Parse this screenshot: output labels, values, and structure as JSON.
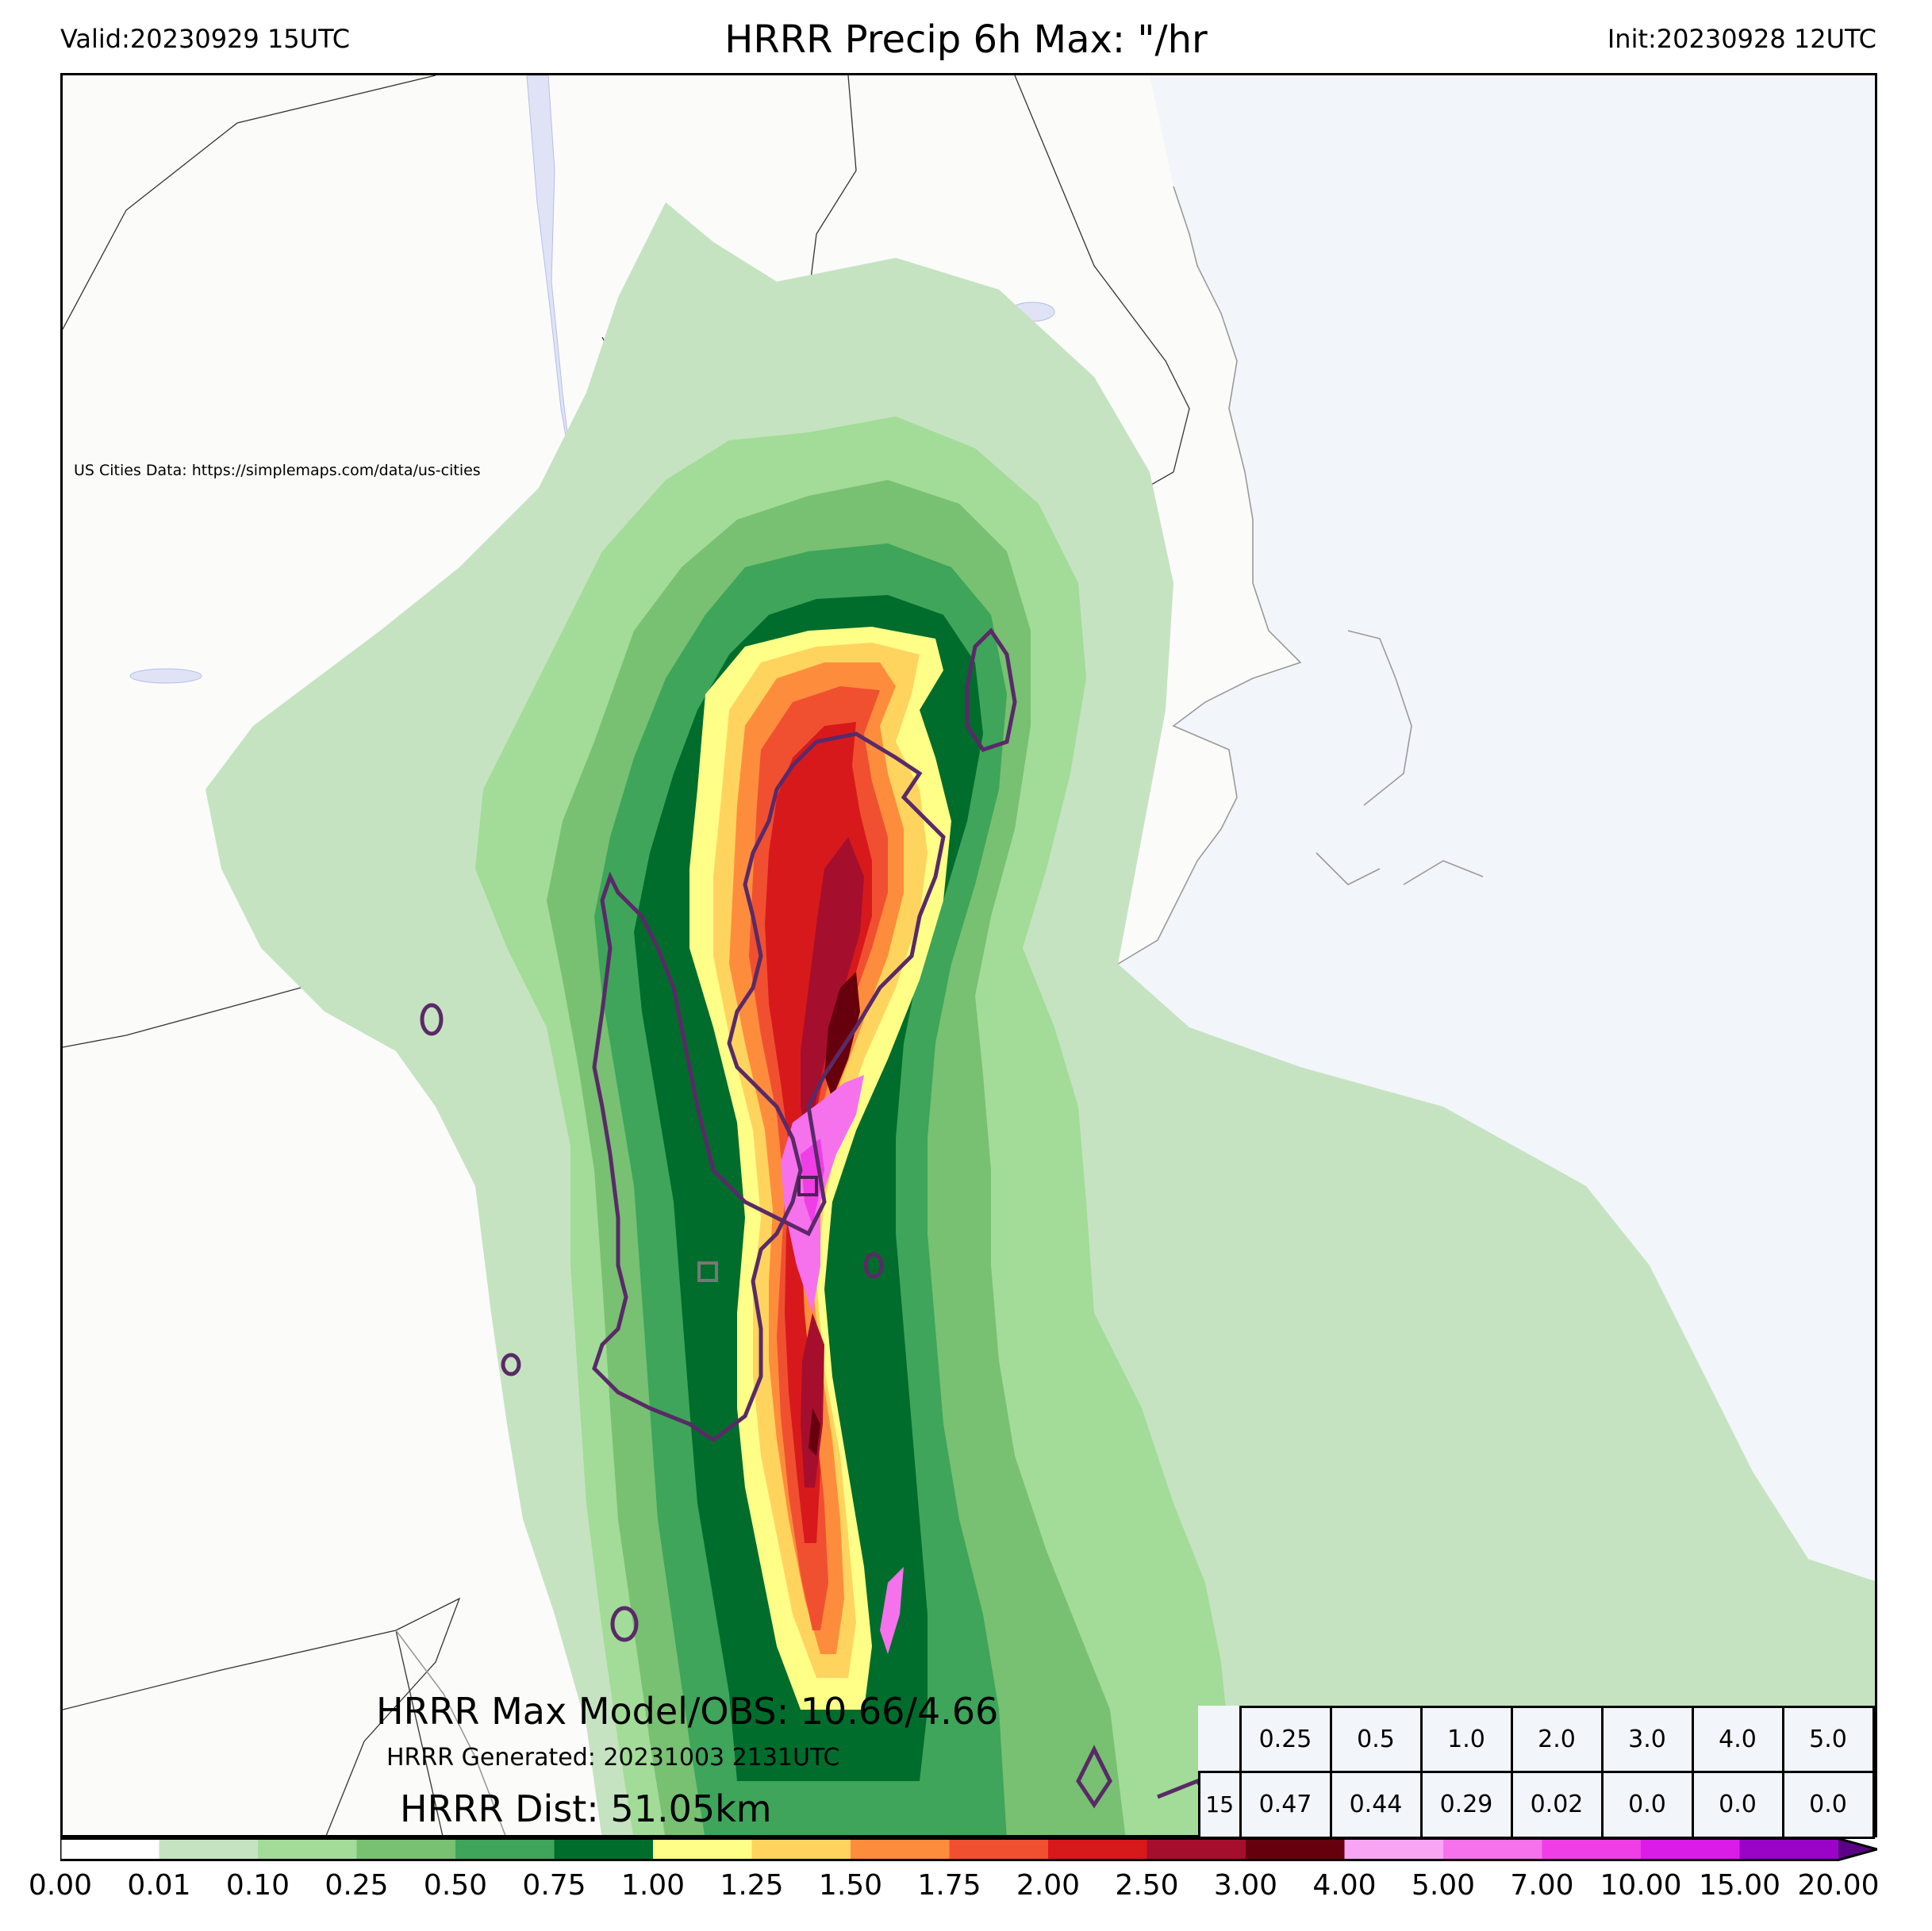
{
  "header": {
    "valid": "Valid:20230929 15UTC",
    "title": "HRRR Precip 6h Max: \"/hr",
    "init": "Init:20230928 12UTC"
  },
  "credit": "US Cities Data: https://simplemaps.com/data/us-cities",
  "stats": {
    "max_model_obs": "HRRR Max Model/OBS: 10.66/4.66",
    "generated": "HRRR Generated: 20231003 2131UTC",
    "distance": "HRRR Dist: 51.05km"
  },
  "score_table": {
    "thresholds": [
      "0.25",
      "0.5",
      "1.0",
      "2.0",
      "3.0",
      "4.0",
      "5.0"
    ],
    "row_label": "15",
    "scores": [
      "0.47",
      "0.44",
      "0.29",
      "0.02",
      "0.0",
      "0.0",
      "0.0"
    ]
  },
  "colorbar": {
    "ticks": [
      "0.00",
      "0.01",
      "0.10",
      "0.25",
      "0.50",
      "0.75",
      "1.00",
      "1.25",
      "1.50",
      "1.75",
      "2.00",
      "2.50",
      "3.00",
      "4.00",
      "5.00",
      "7.00",
      "10.00",
      "15.00",
      "20.00"
    ],
    "colors": [
      "#ffffff",
      "#c5e3c1",
      "#a2dc98",
      "#78c072",
      "#3ea55a",
      "#006d2c",
      "#ffff88",
      "#ffd45e",
      "#fd8d3c",
      "#f05030",
      "#d7191c",
      "#a50f2d",
      "#67000d",
      "#f8a6f3",
      "#f572ec",
      "#ef3ee6",
      "#d91ce8",
      "#9a04c7"
    ],
    "extend_color": "#5c0085"
  },
  "map_colors": {
    "land": "#fbfbfa",
    "ocean": "#f2f5fa",
    "lake": "#dfe3f5",
    "borders": "#333333",
    "obs_contour": "#5a2a68",
    "box_model": "#4a2250",
    "box_obs": "#777777"
  }
}
